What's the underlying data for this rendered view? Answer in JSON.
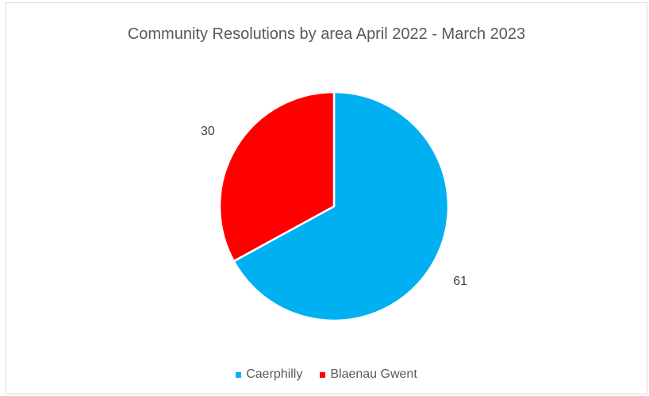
{
  "chart_data": {
    "type": "pie",
    "title": "Community Resolutions by area April 2022 - March 2023",
    "categories": [
      "Caerphilly",
      "Blaenau Gwent"
    ],
    "values": [
      61,
      30
    ],
    "colors": [
      "#00b0f0",
      "#ff0000"
    ],
    "data_labels": [
      "61",
      "30"
    ],
    "legend_position": "bottom",
    "start_angle_degrees": 0,
    "direction": "clockwise",
    "slice_border_color": "#ffffff"
  }
}
